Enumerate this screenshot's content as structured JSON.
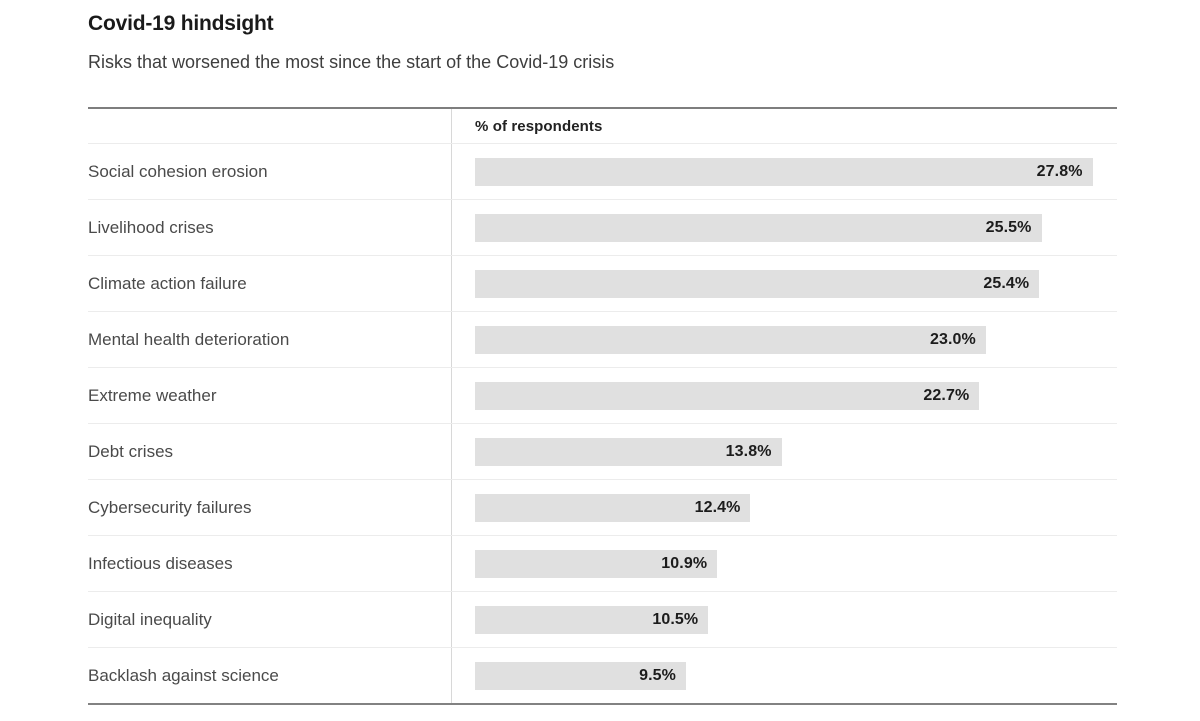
{
  "header": {
    "title": "Covid-19 hindsight",
    "subtitle": "Risks that worsened the most since the start of the Covid-19 crisis"
  },
  "table": {
    "value_column_header": "% of respondents"
  },
  "chart_data": {
    "type": "bar",
    "orientation": "horizontal",
    "title": "Covid-19 hindsight",
    "subtitle": "Risks that worsened the most since the start of the Covid-19 crisis",
    "xlabel": "% of respondents",
    "ylabel": "",
    "xlim": [
      0,
      28.9
    ],
    "grid": false,
    "legend": false,
    "categories": [
      "Social cohesion erosion",
      "Livelihood crises",
      "Climate action failure",
      "Mental health deterioration",
      "Extreme weather",
      "Debt crises",
      "Cybersecurity failures",
      "Infectious diseases",
      "Digital inequality",
      "Backlash against science"
    ],
    "values": [
      27.8,
      25.5,
      25.4,
      23.0,
      22.7,
      13.8,
      12.4,
      10.9,
      10.5,
      9.5
    ],
    "value_labels": [
      "27.8%",
      "25.5%",
      "25.4%",
      "23.0%",
      "22.7%",
      "13.8%",
      "12.4%",
      "10.9%",
      "10.5%",
      "9.5%"
    ],
    "data_label_position": "inside-end"
  },
  "colors": {
    "bar_fill": "#e0e0e0",
    "title_text": "#1a1a1a",
    "subtitle_text": "#3e3e3e",
    "label_text": "#4a4a4a",
    "value_text": "#1c1c1c",
    "outer_rule": "#7e7e7e",
    "row_divider": "#ececec",
    "column_divider": "#d8d8d8",
    "background": "#ffffff"
  }
}
